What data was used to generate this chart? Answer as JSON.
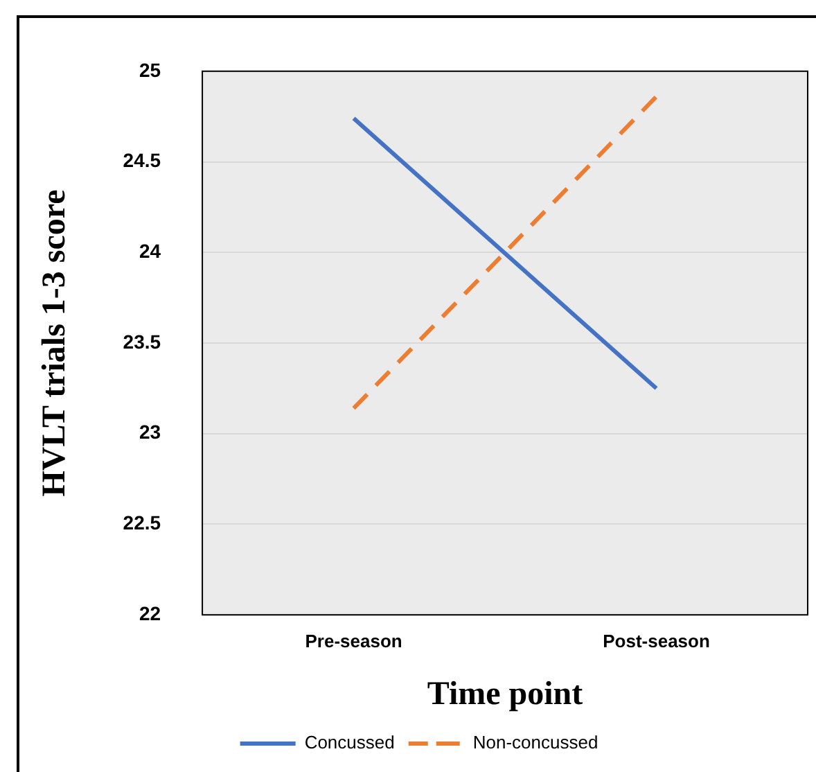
{
  "chart_data": {
    "type": "line",
    "xlabel": "Time point",
    "ylabel": "HVLT trials 1-3 score",
    "categories": [
      "Pre-season",
      "Post-season"
    ],
    "series": [
      {
        "name": "Concussed",
        "color": "#4472c4",
        "values": [
          24.74,
          23.25
        ],
        "line_style": "solid"
      },
      {
        "name": "Non-concussed",
        "color": "#ed7d31",
        "values": [
          23.14,
          24.86
        ],
        "line_style": "dashed"
      }
    ],
    "ylim": [
      22,
      25
    ],
    "yticks": [
      22,
      22.5,
      23,
      23.5,
      24,
      24.5,
      25
    ],
    "grid": "y",
    "legend": "bottom",
    "marker": "none"
  }
}
